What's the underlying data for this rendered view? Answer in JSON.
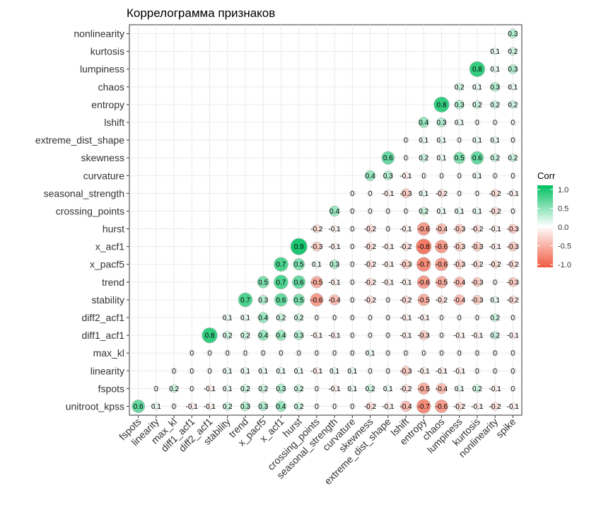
{
  "chart_data": {
    "type": "heatmap",
    "title": "Коррелограмма признаков",
    "variables": [
      "fspots",
      "linearity",
      "max_kl",
      "diff1_acf1",
      "diff2_acf1",
      "stability",
      "trend",
      "x_pacf5",
      "x_acf1",
      "hurst",
      "crossing_points",
      "seasonal_strength",
      "curvature",
      "skewness",
      "extreme_dist_shape",
      "lshift",
      "entropy",
      "chaos",
      "lumpiness",
      "kurtosis",
      "nonlinearity",
      "spike"
    ],
    "rows": [
      "unitroot_kpss",
      "fspots",
      "linearity",
      "max_kl",
      "diff1_acf1",
      "diff2_acf1",
      "stability",
      "trend",
      "x_pacf5",
      "x_acf1",
      "hurst",
      "crossing_points",
      "seasonal_strength",
      "curvature",
      "skewness",
      "extreme_dist_shape",
      "lshift",
      "entropy",
      "chaos",
      "lumpiness",
      "kurtosis",
      "nonlinearity"
    ],
    "values": [
      [
        0.6,
        0.1,
        0,
        -0.1,
        -0.1,
        0.2,
        0.3,
        0.3,
        0.4,
        0.2,
        0,
        0,
        0,
        -0.2,
        -0.1,
        -0.4,
        -0.7,
        -0.6,
        -0.2,
        -0.1,
        -0.2,
        -0.1
      ],
      [
        null,
        0,
        0.2,
        0,
        -0.1,
        0.1,
        0.2,
        0.2,
        0.3,
        0.2,
        0,
        -0.1,
        0.1,
        0.2,
        0.1,
        -0.2,
        -0.5,
        -0.4,
        0.1,
        0.2,
        -0.1,
        0
      ],
      [
        null,
        null,
        0,
        0,
        0,
        0.1,
        0.1,
        0.1,
        0.1,
        0.1,
        -0.1,
        0.1,
        0.1,
        0,
        0,
        -0.3,
        -0.1,
        -0.1,
        -0.1,
        0,
        0,
        0
      ],
      [
        null,
        null,
        null,
        0,
        0,
        0,
        0,
        0,
        0,
        0,
        0,
        0,
        0,
        0.1,
        0,
        0,
        0,
        0,
        0,
        0,
        0,
        0
      ],
      [
        null,
        null,
        null,
        null,
        0.8,
        0.2,
        0.2,
        0.4,
        0.4,
        0.3,
        -0.1,
        -0.1,
        0,
        0,
        0,
        -0.1,
        -0.3,
        0,
        -0.1,
        -0.1,
        0.2,
        -0.1
      ],
      [
        null,
        null,
        null,
        null,
        null,
        0.1,
        0.1,
        0.4,
        0.2,
        0.2,
        0,
        0,
        0,
        0,
        0,
        -0.1,
        -0.1,
        0,
        0,
        0,
        0.2,
        0
      ],
      [
        null,
        null,
        null,
        null,
        null,
        null,
        0.7,
        0.3,
        0.6,
        0.5,
        -0.6,
        -0.4,
        0,
        -0.2,
        0,
        -0.2,
        -0.5,
        -0.2,
        -0.4,
        -0.3,
        0.1,
        -0.2
      ],
      [
        null,
        null,
        null,
        null,
        null,
        null,
        null,
        0.5,
        0.7,
        0.6,
        -0.5,
        -0.1,
        0,
        -0.2,
        -0.1,
        -0.1,
        -0.6,
        -0.5,
        -0.4,
        -0.3,
        0,
        -0.3
      ],
      [
        null,
        null,
        null,
        null,
        null,
        null,
        null,
        null,
        0.7,
        0.5,
        0.1,
        0.3,
        0,
        -0.2,
        -0.1,
        -0.3,
        -0.7,
        -0.6,
        -0.3,
        -0.2,
        -0.2,
        -0.2
      ],
      [
        null,
        null,
        null,
        null,
        null,
        null,
        null,
        null,
        null,
        0.9,
        -0.3,
        -0.1,
        0,
        -0.2,
        -0.1,
        -0.2,
        -0.8,
        -0.6,
        -0.3,
        -0.3,
        -0.1,
        -0.3
      ],
      [
        null,
        null,
        null,
        null,
        null,
        null,
        null,
        null,
        null,
        null,
        -0.2,
        -0.1,
        0,
        -0.2,
        0,
        -0.1,
        -0.6,
        -0.4,
        -0.3,
        -0.2,
        -0.1,
        -0.3
      ],
      [
        null,
        null,
        null,
        null,
        null,
        null,
        null,
        null,
        null,
        null,
        null,
        0.4,
        0,
        0,
        0,
        0,
        0.2,
        0.1,
        0.1,
        0.1,
        -0.2,
        0
      ],
      [
        null,
        null,
        null,
        null,
        null,
        null,
        null,
        null,
        null,
        null,
        null,
        null,
        0,
        0,
        -0.1,
        -0.3,
        0.1,
        -0.2,
        0,
        0,
        -0.2,
        -0.1
      ],
      [
        null,
        null,
        null,
        null,
        null,
        null,
        null,
        null,
        null,
        null,
        null,
        null,
        null,
        0.4,
        0.3,
        -0.1,
        0,
        0,
        0,
        0.1,
        0,
        0
      ],
      [
        null,
        null,
        null,
        null,
        null,
        null,
        null,
        null,
        null,
        null,
        null,
        null,
        null,
        null,
        0.6,
        0,
        0.2,
        0.1,
        0.5,
        0.6,
        0.2,
        0.2
      ],
      [
        null,
        null,
        null,
        null,
        null,
        null,
        null,
        null,
        null,
        null,
        null,
        null,
        null,
        null,
        null,
        0,
        0.1,
        0.1,
        0,
        0.1,
        0.1,
        0
      ],
      [
        null,
        null,
        null,
        null,
        null,
        null,
        null,
        null,
        null,
        null,
        null,
        null,
        null,
        null,
        null,
        null,
        0.4,
        0.3,
        0.1,
        0,
        0,
        0
      ],
      [
        null,
        null,
        null,
        null,
        null,
        null,
        null,
        null,
        null,
        null,
        null,
        null,
        null,
        null,
        null,
        null,
        null,
        0.8,
        0.3,
        0.2,
        0.2,
        0.2
      ],
      [
        null,
        null,
        null,
        null,
        null,
        null,
        null,
        null,
        null,
        null,
        null,
        null,
        null,
        null,
        null,
        null,
        null,
        null,
        0.2,
        0.1,
        0.3,
        0.1
      ],
      [
        null,
        null,
        null,
        null,
        null,
        null,
        null,
        null,
        null,
        null,
        null,
        null,
        null,
        null,
        null,
        null,
        null,
        null,
        null,
        0.8,
        0.1,
        0.3
      ],
      [
        null,
        null,
        null,
        null,
        null,
        null,
        null,
        null,
        null,
        null,
        null,
        null,
        null,
        null,
        null,
        null,
        null,
        null,
        null,
        null,
        0.1,
        0.2
      ],
      [
        null,
        null,
        null,
        null,
        null,
        null,
        null,
        null,
        null,
        null,
        null,
        null,
        null,
        null,
        null,
        null,
        null,
        null,
        null,
        null,
        null,
        0.3
      ]
    ],
    "legend": {
      "title": "Corr",
      "ticks": [
        1.0,
        0.5,
        0.0,
        -0.5,
        -1.0
      ],
      "tick_labels": [
        "1.0",
        "0.5",
        "0.0",
        "-0.5",
        "-1.0"
      ],
      "placement": "right"
    },
    "colors": {
      "positive": "#00C060",
      "neutral": "#FFFFFF",
      "negative": "#F05A40"
    },
    "grid": true
  }
}
